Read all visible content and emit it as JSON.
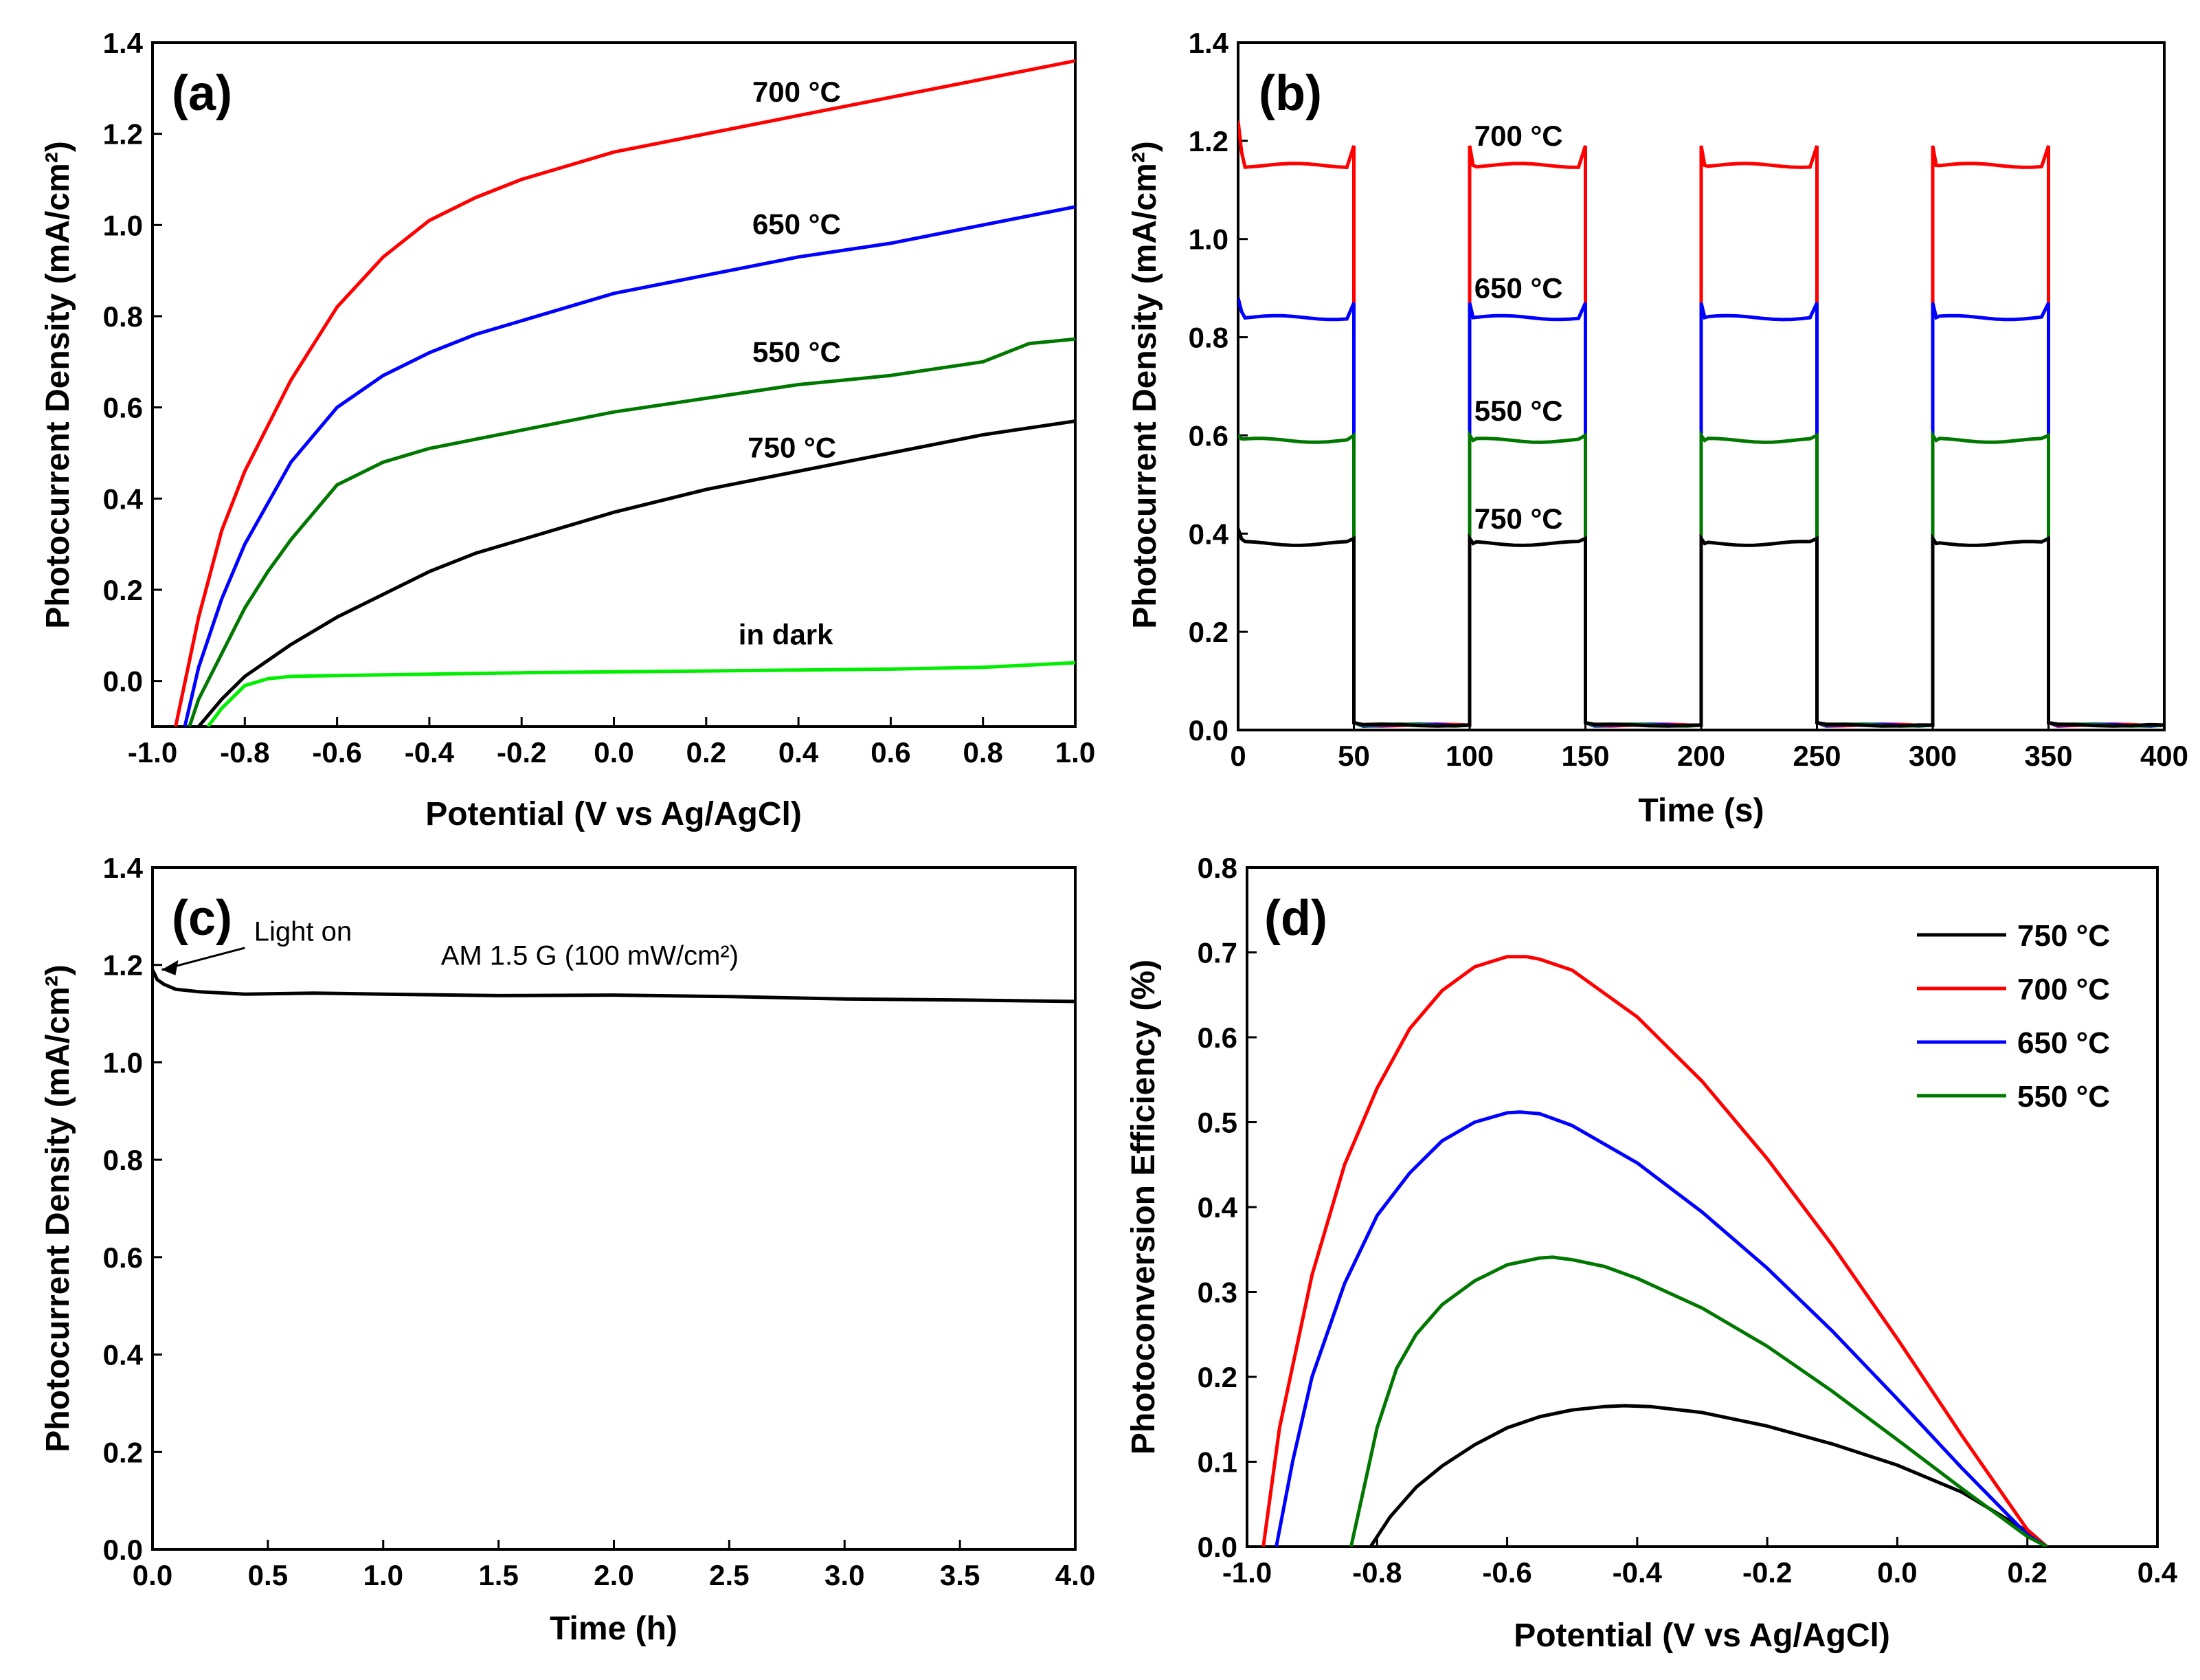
{
  "chart_data": [
    {
      "id": "a",
      "type": "line",
      "panel_label": "(a)",
      "xlabel": "Potential (V vs Ag/AgCl)",
      "ylabel": "Photocurrent Density (mA/cm²)",
      "xlim": [
        -1.0,
        1.0
      ],
      "ylim": [
        -0.1,
        1.4
      ],
      "xticks": [
        -1.0,
        -0.8,
        -0.6,
        -0.4,
        -0.2,
        0.0,
        0.2,
        0.4,
        0.6,
        0.8,
        1.0
      ],
      "xtick_labels": [
        "-1.0",
        "-0.8",
        "-0.6",
        "-0.4",
        "-0.2",
        "0.0",
        "0.2",
        "0.4",
        "0.6",
        "0.8",
        "1.0"
      ],
      "yticks": [
        0.0,
        0.2,
        0.4,
        0.6,
        0.8,
        1.0,
        1.2,
        1.4
      ],
      "ytick_labels": [
        "0.0",
        "0.2",
        "0.4",
        "0.6",
        "0.8",
        "1.0",
        "1.2",
        "1.4"
      ],
      "series": [
        {
          "name": "700 °C",
          "color": "#ff0000",
          "x": [
            -0.95,
            -0.9,
            -0.85,
            -0.8,
            -0.7,
            -0.6,
            -0.5,
            -0.4,
            -0.3,
            -0.2,
            -0.1,
            0.0,
            0.2,
            0.4,
            0.6,
            0.8,
            1.0
          ],
          "y": [
            -0.1,
            0.14,
            0.33,
            0.46,
            0.66,
            0.82,
            0.93,
            1.01,
            1.06,
            1.1,
            1.13,
            1.16,
            1.2,
            1.24,
            1.28,
            1.32,
            1.36
          ]
        },
        {
          "name": "650 °C",
          "color": "#0000ff",
          "x": [
            -0.93,
            -0.9,
            -0.85,
            -0.8,
            -0.7,
            -0.6,
            -0.5,
            -0.4,
            -0.3,
            -0.2,
            -0.1,
            0.0,
            0.2,
            0.4,
            0.6,
            0.8,
            1.0
          ],
          "y": [
            -0.1,
            0.03,
            0.18,
            0.3,
            0.48,
            0.6,
            0.67,
            0.72,
            0.76,
            0.79,
            0.82,
            0.85,
            0.89,
            0.93,
            0.96,
            1.0,
            1.04
          ]
        },
        {
          "name": "550 °C",
          "color": "#007800",
          "x": [
            -0.92,
            -0.9,
            -0.85,
            -0.8,
            -0.75,
            -0.7,
            -0.6,
            -0.5,
            -0.4,
            -0.3,
            -0.2,
            0.0,
            0.2,
            0.4,
            0.6,
            0.8,
            0.9,
            1.0
          ],
          "y": [
            -0.1,
            -0.04,
            0.06,
            0.16,
            0.24,
            0.31,
            0.43,
            0.48,
            0.51,
            0.53,
            0.55,
            0.59,
            0.62,
            0.65,
            0.67,
            0.7,
            0.74,
            0.75
          ]
        },
        {
          "name": "750 °C",
          "color": "#000000",
          "x": [
            -0.9,
            -0.85,
            -0.8,
            -0.7,
            -0.6,
            -0.5,
            -0.4,
            -0.3,
            -0.2,
            0.0,
            0.2,
            0.4,
            0.6,
            0.8,
            1.0
          ],
          "y": [
            -0.1,
            -0.04,
            0.01,
            0.08,
            0.14,
            0.19,
            0.24,
            0.28,
            0.31,
            0.37,
            0.42,
            0.46,
            0.5,
            0.54,
            0.57
          ]
        },
        {
          "name": "in dark",
          "color": "#00ee00",
          "x": [
            -0.88,
            -0.85,
            -0.8,
            -0.75,
            -0.7,
            -0.6,
            -0.4,
            -0.2,
            0.0,
            0.2,
            0.4,
            0.6,
            0.8,
            0.9,
            1.0
          ],
          "y": [
            -0.1,
            -0.06,
            -0.01,
            0.005,
            0.01,
            0.012,
            0.015,
            0.018,
            0.02,
            0.022,
            0.024,
            0.026,
            0.03,
            0.035,
            0.04
          ]
        }
      ],
      "annotations": [
        {
          "text": "700 °C",
          "x": 0.3,
          "y": 1.27
        },
        {
          "text": "650 °C",
          "x": 0.3,
          "y": 0.98
        },
        {
          "text": "550 °C",
          "x": 0.3,
          "y": 0.7
        },
        {
          "text": "750 °C",
          "x": 0.29,
          "y": 0.49
        },
        {
          "text": "in dark",
          "x": 0.27,
          "y": 0.08
        }
      ]
    },
    {
      "id": "b",
      "type": "line",
      "panel_label": "(b)",
      "xlabel": "Time (s)",
      "ylabel": "Photocurrent Density (mA/cm²)",
      "xlim": [
        0,
        400
      ],
      "ylim": [
        0.0,
        1.4
      ],
      "xticks": [
        0,
        50,
        100,
        150,
        200,
        250,
        300,
        350,
        400
      ],
      "xtick_labels": [
        "0",
        "50",
        "100",
        "150",
        "200",
        "250",
        "300",
        "350",
        "400"
      ],
      "yticks": [
        0.0,
        0.2,
        0.4,
        0.6,
        0.8,
        1.0,
        1.2,
        1.4
      ],
      "ytick_labels": [
        "0.0",
        "0.2",
        "0.4",
        "0.6",
        "0.8",
        "1.0",
        "1.2",
        "1.4"
      ],
      "light_on_intervals": [
        [
          0,
          50
        ],
        [
          100,
          150
        ],
        [
          200,
          250
        ],
        [
          300,
          350
        ]
      ],
      "dark_level": 0.01,
      "series": [
        {
          "name": "700 °C",
          "color": "#ff0000",
          "on_level": 1.15,
          "spike": 1.19,
          "start_spike": 1.24
        },
        {
          "name": "650 °C",
          "color": "#0000ff",
          "on_level": 0.84,
          "spike": 0.87,
          "start_spike": 0.88
        },
        {
          "name": "550 °C",
          "color": "#007800",
          "on_level": 0.59,
          "spike": 0.6,
          "start_spike": 0.6
        },
        {
          "name": "750 °C",
          "color": "#000000",
          "on_level": 0.38,
          "spike": 0.39,
          "start_spike": 0.41
        }
      ],
      "annotations": [
        {
          "text": "700 °C",
          "x": 102,
          "y": 1.19
        },
        {
          "text": "650 °C",
          "x": 102,
          "y": 0.88
        },
        {
          "text": "550 °C",
          "x": 102,
          "y": 0.63
        },
        {
          "text": "750 °C",
          "x": 102,
          "y": 0.41
        }
      ]
    },
    {
      "id": "c",
      "type": "line",
      "panel_label": "(c)",
      "xlabel": "Time (h)",
      "ylabel": "Photocurrent Density (mA/cm²)",
      "xlim": [
        0.0,
        4.0
      ],
      "ylim": [
        0.0,
        1.4
      ],
      "xticks": [
        0.0,
        0.5,
        1.0,
        1.5,
        2.0,
        2.5,
        3.0,
        3.5,
        4.0
      ],
      "xtick_labels": [
        "0.0",
        "0.5",
        "1.0",
        "1.5",
        "2.0",
        "2.5",
        "3.0",
        "3.5",
        "4.0"
      ],
      "yticks": [
        0.0,
        0.2,
        0.4,
        0.6,
        0.8,
        1.0,
        1.2,
        1.4
      ],
      "ytick_labels": [
        "0.0",
        "0.2",
        "0.4",
        "0.6",
        "0.8",
        "1.0",
        "1.2",
        "1.4"
      ],
      "series": [
        {
          "name": "AM 1.5 G",
          "color": "#000000",
          "x": [
            0.0,
            0.02,
            0.05,
            0.1,
            0.2,
            0.4,
            0.7,
            1.0,
            1.5,
            2.0,
            2.5,
            3.0,
            3.5,
            4.0
          ],
          "y": [
            1.19,
            1.17,
            1.16,
            1.15,
            1.145,
            1.14,
            1.142,
            1.14,
            1.137,
            1.138,
            1.135,
            1.13,
            1.128,
            1.125
          ]
        }
      ],
      "annotations": [
        {
          "text": "Light on",
          "x": 0.44,
          "y": 1.25
        },
        {
          "text": "AM 1.5 G (100 mW/cm²)",
          "x": 1.25,
          "y": 1.2
        }
      ]
    },
    {
      "id": "d",
      "type": "line",
      "panel_label": "(d)",
      "xlabel": "Potential (V vs Ag/AgCl)",
      "ylabel": "Photoconversion Efficiency (%)",
      "xlim": [
        -1.0,
        0.4
      ],
      "ylim": [
        0.0,
        0.8
      ],
      "xticks": [
        -1.0,
        -0.8,
        -0.6,
        -0.4,
        -0.2,
        0.0,
        0.2,
        0.4
      ],
      "xtick_labels": [
        "-1.0",
        "-0.8",
        "-0.6",
        "-0.4",
        "-0.2",
        "0.0",
        "0.2",
        "0.4"
      ],
      "yticks": [
        0.0,
        0.1,
        0.2,
        0.3,
        0.4,
        0.5,
        0.6,
        0.7,
        0.8
      ],
      "ytick_labels": [
        "0.0",
        "0.1",
        "0.2",
        "0.3",
        "0.4",
        "0.5",
        "0.6",
        "0.7",
        "0.8"
      ],
      "legend": {
        "position": "top-right",
        "entries": [
          "750 °C",
          "700 °C",
          "650 °C",
          "550 °C"
        ]
      },
      "series": [
        {
          "name": "750 °C",
          "color": "#000000",
          "x": [
            -0.81,
            -0.78,
            -0.74,
            -0.7,
            -0.65,
            -0.6,
            -0.55,
            -0.5,
            -0.45,
            -0.42,
            -0.38,
            -0.3,
            -0.2,
            -0.1,
            0.0,
            0.1,
            0.2,
            0.23
          ],
          "y": [
            0.0,
            0.035,
            0.07,
            0.095,
            0.12,
            0.14,
            0.153,
            0.161,
            0.165,
            0.166,
            0.165,
            0.158,
            0.142,
            0.121,
            0.096,
            0.064,
            0.018,
            0.0
          ]
        },
        {
          "name": "700 °C",
          "color": "#ff0000",
          "x": [
            -0.975,
            -0.95,
            -0.9,
            -0.85,
            -0.8,
            -0.75,
            -0.7,
            -0.65,
            -0.6,
            -0.57,
            -0.55,
            -0.5,
            -0.4,
            -0.3,
            -0.2,
            -0.1,
            0.0,
            0.1,
            0.2,
            0.23
          ],
          "y": [
            0.0,
            0.14,
            0.32,
            0.45,
            0.54,
            0.61,
            0.655,
            0.683,
            0.695,
            0.695,
            0.692,
            0.679,
            0.624,
            0.548,
            0.457,
            0.355,
            0.245,
            0.13,
            0.02,
            0.0
          ]
        },
        {
          "name": "650 °C",
          "color": "#0000ff",
          "x": [
            -0.955,
            -0.93,
            -0.9,
            -0.85,
            -0.8,
            -0.75,
            -0.7,
            -0.65,
            -0.6,
            -0.58,
            -0.55,
            -0.5,
            -0.4,
            -0.3,
            -0.2,
            -0.1,
            0.0,
            0.1,
            0.2,
            0.23
          ],
          "y": [
            0.0,
            0.1,
            0.2,
            0.31,
            0.39,
            0.44,
            0.478,
            0.5,
            0.511,
            0.512,
            0.51,
            0.496,
            0.452,
            0.394,
            0.328,
            0.254,
            0.174,
            0.092,
            0.014,
            0.0
          ]
        },
        {
          "name": "550 °C",
          "color": "#007800",
          "x": [
            -0.84,
            -0.82,
            -0.8,
            -0.77,
            -0.74,
            -0.7,
            -0.65,
            -0.6,
            -0.55,
            -0.53,
            -0.5,
            -0.45,
            -0.4,
            -0.3,
            -0.2,
            -0.1,
            0.0,
            0.1,
            0.2,
            0.23
          ],
          "y": [
            0.0,
            0.07,
            0.14,
            0.21,
            0.25,
            0.285,
            0.313,
            0.332,
            0.34,
            0.341,
            0.338,
            0.33,
            0.316,
            0.281,
            0.236,
            0.183,
            0.126,
            0.068,
            0.012,
            0.0
          ]
        }
      ]
    }
  ]
}
